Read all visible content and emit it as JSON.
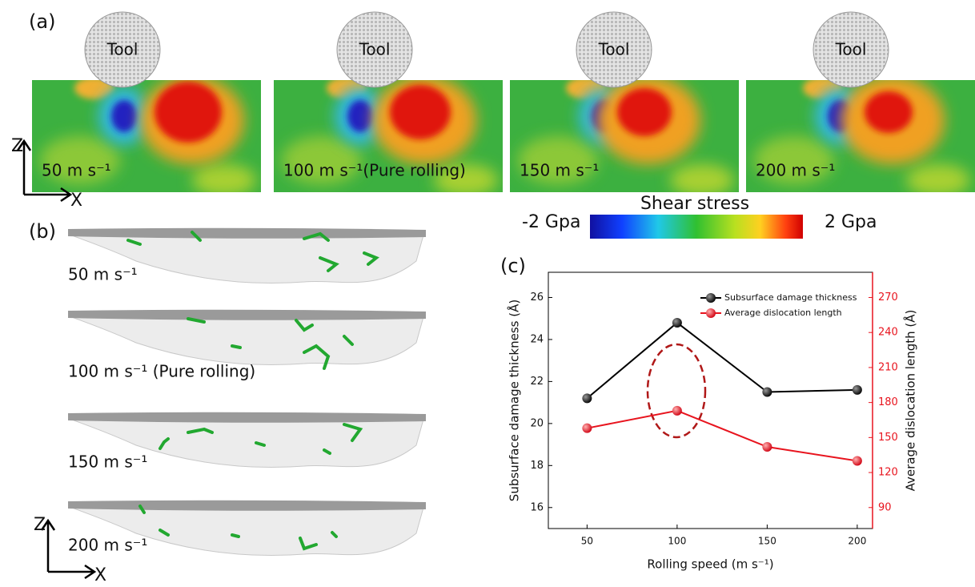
{
  "panels": {
    "a": {
      "label": "(a)",
      "axes": {
        "z": "Z",
        "x": "X"
      },
      "snapshots": [
        {
          "tool": "Tool",
          "label": "50 m s⁻¹"
        },
        {
          "tool": "Tool",
          "label": "100 m s⁻¹(Pure rolling)"
        },
        {
          "tool": "Tool",
          "label": "150 m s⁻¹"
        },
        {
          "tool": "Tool",
          "label": "200 m s⁻¹"
        }
      ]
    },
    "colorbar": {
      "title": "Shear stress",
      "min": "-2 Gpa",
      "max": "2 Gpa"
    },
    "b": {
      "label": "(b)",
      "axes": {
        "z": "Z",
        "x": "X"
      },
      "snapshots": [
        {
          "label": "50 m s⁻¹"
        },
        {
          "label": "100 m s⁻¹ (Pure rolling)"
        },
        {
          "label": "150 m s⁻¹"
        },
        {
          "label": "200 m s⁻¹"
        }
      ]
    },
    "c": {
      "label": "(c)"
    }
  },
  "chart_data": {
    "type": "line",
    "x_label": "Rolling speed (m s⁻¹)",
    "y_label": "Subsurface damage thickness (Å)",
    "y2_label": "Average dislocation length (Å)",
    "x": [
      50,
      100,
      150,
      200
    ],
    "xlim": [
      28.5,
      208.5
    ],
    "xticks": [
      50,
      100,
      150,
      200
    ],
    "ylim": [
      15,
      27.2
    ],
    "yticks": [
      16,
      18,
      20,
      22,
      24,
      26
    ],
    "y2lim": [
      72,
      291.6
    ],
    "y2ticks": [
      90,
      120,
      150,
      180,
      210,
      240,
      270
    ],
    "legend": "upper right",
    "grid": false,
    "series": [
      {
        "name": "Subsurface damage thickness",
        "color": "#000000",
        "values": [
          21.2,
          24.8,
          21.5,
          21.6
        ]
      },
      {
        "name": "Average dislocation length",
        "color": "#e8141e",
        "axis": "y2",
        "values": [
          158,
          173,
          142,
          130
        ]
      }
    ]
  }
}
